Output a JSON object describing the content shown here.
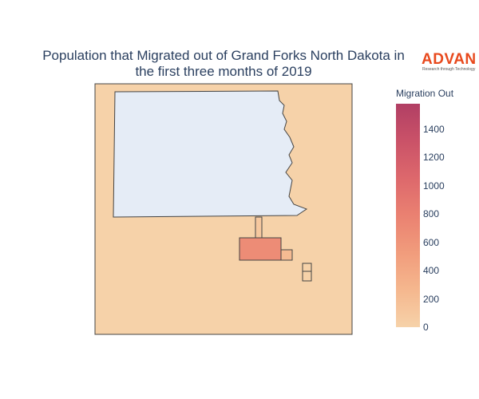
{
  "title": {
    "line1": "Population that Migrated out of Grand Forks North Dakota in",
    "line2": "the first three months of 2019"
  },
  "logo": {
    "word": "ADVAN",
    "tagline": "Research through Technology"
  },
  "colorbar": {
    "title": "Migration Out",
    "min": 0,
    "max": 1580,
    "ticks": [
      "0",
      "200",
      "400",
      "600",
      "800",
      "1000",
      "1200",
      "1400"
    ],
    "colorscale": [
      "#f6d2a9",
      "#f5b78e",
      "#f19c7c",
      "#ea8171",
      "#dd686c",
      "#ca5268",
      "#b13f64"
    ]
  },
  "colors": {
    "background": "#f6d2a9",
    "no_data": "#e5ecf6",
    "border": "#444444",
    "text": "#2a3f5f",
    "brand": "#e8491d"
  },
  "chart_data": {
    "type": "choropleth",
    "title": "Population that Migrated out of Grand Forks North Dakota in the first three months of 2019",
    "colorbar_label": "Migration Out",
    "regions": [
      {
        "name": "",
        "value": null
      },
      {
        "name": "",
        "value": 680
      },
      {
        "name": "",
        "value": 100
      },
      {
        "name": "",
        "value": 220
      },
      {
        "name": "",
        "value": 0
      },
      {
        "name": "",
        "value": 0
      }
    ]
  }
}
